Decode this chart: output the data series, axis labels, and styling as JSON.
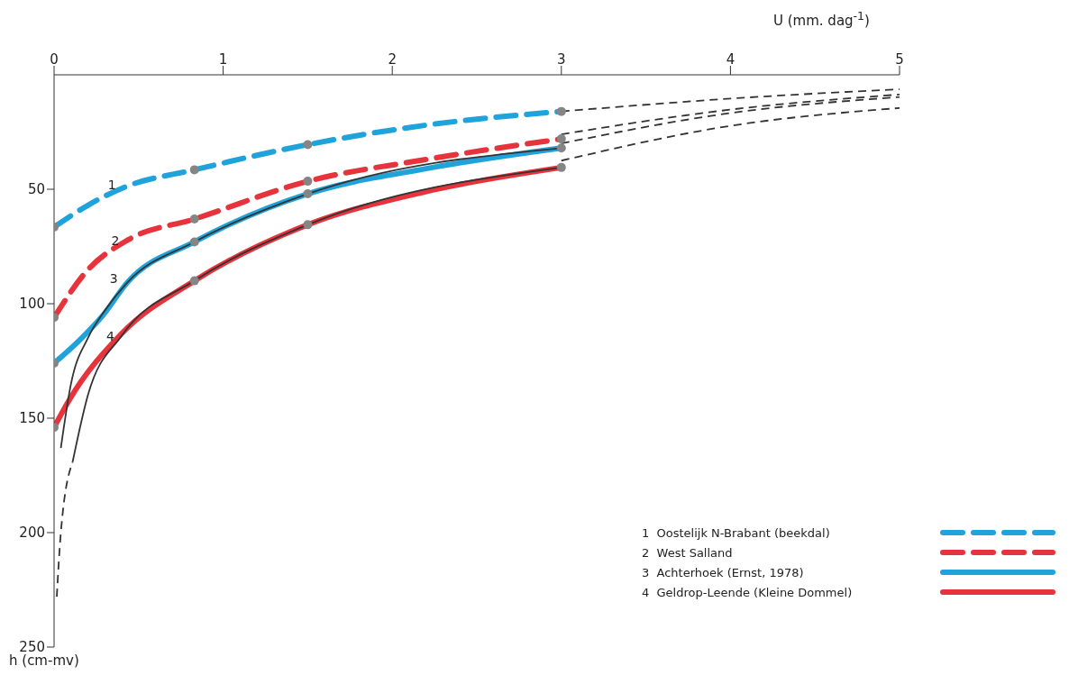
{
  "chart_data": {
    "type": "line",
    "xlabel": "U (mm. dag$^{-1}$)",
    "ylabel": "h (cm-mv)",
    "xlim": [
      0,
      5
    ],
    "xticks": [
      0,
      1,
      2,
      3,
      4,
      5
    ],
    "ylim": [
      250,
      0
    ],
    "yticks": [
      50,
      100,
      150,
      200,
      250
    ],
    "grid": false,
    "legend": "bottom right",
    "marker": "none",
    "annotations": [
      {
        "text": "1",
        "x": 0.42,
        "y": 48
      },
      {
        "text": "2",
        "x": 0.44,
        "y": 72.5
      },
      {
        "text": "3",
        "x": 0.43,
        "y": 89
      },
      {
        "text": "4",
        "x": 0.41,
        "y": 114
      }
    ],
    "series": [
      {
        "name": "1  Oostelijk N-Brabant (beekdal)",
        "color": "#1fa3da",
        "line_style": "dashed",
        "x": [
          0,
          0.2,
          0.42,
          0.83,
          1.5,
          2.2,
          3
        ],
        "values": [
          66.5,
          57,
          49,
          41.5,
          30.5,
          22,
          16
        ]
      },
      {
        "name": "2  West Salland",
        "color": "#e6333c",
        "line_style": "dashed",
        "x": [
          0,
          0.19,
          0.44,
          0.83,
          1.5,
          2.2,
          3
        ],
        "values": [
          106,
          86,
          72,
          63,
          46.5,
          37,
          28
        ]
      },
      {
        "name": "3  Achterhoek (Ernst, 1978)",
        "color": "#1fa3da",
        "line_style": "solid",
        "x": [
          0,
          0.15,
          0.29,
          0.43,
          0.83,
          1.5,
          2.2,
          3
        ],
        "values": [
          126,
          116,
          105,
          91,
          73,
          52,
          41,
          32
        ]
      },
      {
        "name": "4  Geldrop-Leende (Kleine Dommel)",
        "color": "#e6333c",
        "line_style": "solid",
        "x": [
          0,
          0.09,
          0.4,
          0.83,
          1.5,
          2.2,
          3
        ],
        "values": [
          154,
          142,
          113,
          90,
          65.5,
          51,
          40.5
        ]
      },
      {
        "color": "#333333",
        "line_style": "solid",
        "x": [
          0.04,
          0.1,
          0.2,
          0.3,
          0.43,
          0.83,
          1.5,
          3
        ],
        "values": [
          163,
          135,
          115,
          103,
          91,
          73,
          52,
          32
        ]
      },
      {
        "color": "#333333",
        "line_style": "solid",
        "x": [
          0.11,
          0.2,
          0.4,
          0.83,
          1.5,
          3
        ],
        "values": [
          169,
          140,
          114,
          90,
          65.5,
          40.5
        ]
      },
      {
        "color": "#333333",
        "line_style": "dashed",
        "x": [
          0.016,
          0.04,
          0.11
        ],
        "values": [
          228,
          200,
          169
        ]
      },
      {
        "color": "#333333",
        "line_style": "dashed",
        "x": [
          3,
          4,
          5
        ],
        "values": [
          16,
          10.4,
          6.3
        ]
      },
      {
        "color": "#333333",
        "line_style": "dashed",
        "x": [
          3,
          4,
          5
        ],
        "values": [
          26,
          15.2,
          8.6
        ]
      },
      {
        "color": "#333333",
        "line_style": "dashed",
        "x": [
          3,
          4,
          5
        ],
        "values": [
          30,
          16.7,
          9.7
        ]
      },
      {
        "color": "#333333",
        "line_style": "dashed",
        "x": [
          3,
          4,
          5
        ],
        "values": [
          37.5,
          22.3,
          14.5
        ]
      },
      {
        "type": "scatter",
        "marker": "circle",
        "color": "#858585",
        "x": [
          0,
          0.83,
          1.5,
          3,
          0,
          0.83,
          1.5,
          3,
          0,
          0.83,
          1.5,
          3,
          0,
          0.83,
          1.5,
          3
        ],
        "values": [
          66.5,
          41.5,
          30.5,
          16,
          106,
          63,
          46.5,
          28,
          126,
          73,
          52,
          32,
          154,
          90,
          65.5,
          40.5
        ]
      }
    ]
  }
}
